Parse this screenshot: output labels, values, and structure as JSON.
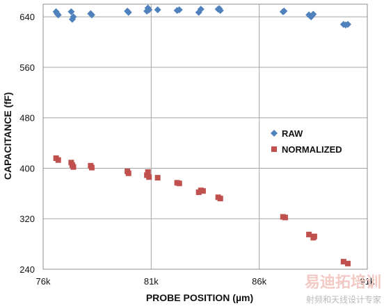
{
  "chart_data": {
    "type": "scatter",
    "title": "",
    "xlabel": "PROBE POSITION (µm)",
    "ylabel": "CAPACITANCE (fF)",
    "xlim": [
      76,
      91
    ],
    "ylim": [
      240,
      660
    ],
    "x_ticks": [
      76,
      81,
      86,
      91
    ],
    "x_tick_labels": [
      "76k",
      "81k",
      "86k",
      "91k"
    ],
    "y_ticks": [
      240,
      320,
      400,
      480,
      560,
      640
    ],
    "y_tick_labels": [
      "240",
      "320",
      "400",
      "480",
      "560",
      "640"
    ],
    "grid": true,
    "legend_position": "right-middle",
    "series": [
      {
        "name": "RAW",
        "marker": "diamond",
        "color": "#4f81bd",
        "x": [
          76.6,
          76.7,
          76.65,
          77.3,
          77.4,
          77.35,
          78.2,
          78.25,
          79.9,
          79.95,
          80.8,
          80.85,
          80.9,
          81.3,
          82.2,
          82.3,
          83.2,
          83.3,
          84.1,
          84.2,
          84.15,
          87.1,
          87.15,
          88.3,
          88.4,
          88.5,
          89.9,
          90.0,
          90.1
        ],
        "y": [
          648,
          643,
          645,
          648,
          640,
          636,
          645,
          643,
          649,
          647,
          649,
          654,
          651,
          651,
          650,
          651,
          647,
          652,
          652,
          650,
          653,
          648,
          649,
          643,
          640,
          644,
          628,
          627,
          628
        ]
      },
      {
        "name": "NORMALIZED",
        "marker": "square",
        "color": "#c0504d",
        "x": [
          76.6,
          76.7,
          77.3,
          77.35,
          77.4,
          78.2,
          78.25,
          79.9,
          79.95,
          80.8,
          80.85,
          80.9,
          81.3,
          82.2,
          82.3,
          83.2,
          83.3,
          83.4,
          84.1,
          84.2,
          87.1,
          87.2,
          88.3,
          88.5,
          88.55,
          89.9,
          90.1
        ],
        "y": [
          416,
          413,
          409,
          405,
          402,
          404,
          401,
          395,
          392,
          389,
          394,
          386,
          385,
          377,
          376,
          362,
          365,
          364,
          354,
          352,
          323,
          322,
          295,
          290,
          292,
          252,
          249
        ]
      }
    ]
  },
  "watermark": {
    "main": "易迪拓培训",
    "sub": "射频和天线设计专家"
  }
}
